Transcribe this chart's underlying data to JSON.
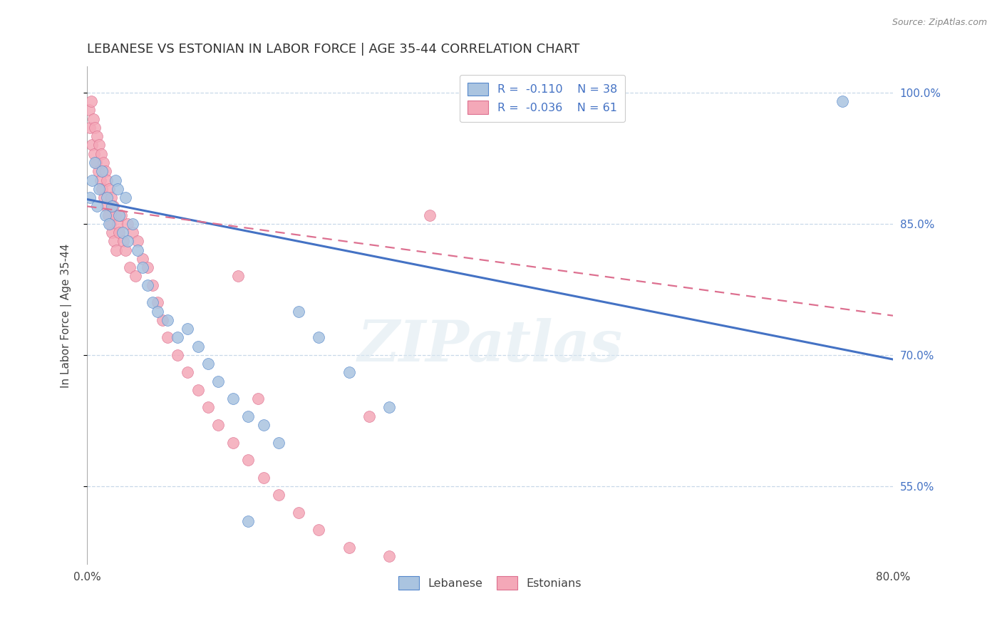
{
  "title": "LEBANESE VS ESTONIAN IN LABOR FORCE | AGE 35-44 CORRELATION CHART",
  "source_text": "Source: ZipAtlas.com",
  "ylabel": "In Labor Force | Age 35-44",
  "xlim": [
    0.0,
    0.8
  ],
  "ylim": [
    0.46,
    1.03
  ],
  "ytick_positions": [
    0.55,
    0.7,
    0.85,
    1.0
  ],
  "yticklabels": [
    "55.0%",
    "70.0%",
    "85.0%",
    "100.0%"
  ],
  "blue_color": "#aac4e0",
  "pink_color": "#f4a8b8",
  "blue_edge_color": "#5588cc",
  "pink_edge_color": "#dd7090",
  "blue_line_color": "#4472c4",
  "pink_line_color": "#dd7090",
  "background_color": "#ffffff",
  "grid_color": "#c8d8e8",
  "watermark": "ZIPatlas",
  "title_fontsize": 13,
  "label_fontsize": 11,
  "tick_fontsize": 11,
  "blue_x": [
    0.003,
    0.005,
    0.008,
    0.01,
    0.012,
    0.015,
    0.018,
    0.02,
    0.022,
    0.025,
    0.028,
    0.03,
    0.032,
    0.035,
    0.038,
    0.04,
    0.045,
    0.05,
    0.055,
    0.06,
    0.065,
    0.07,
    0.08,
    0.09,
    0.1,
    0.11,
    0.12,
    0.13,
    0.145,
    0.16,
    0.175,
    0.19,
    0.21,
    0.23,
    0.26,
    0.3,
    0.16,
    0.75
  ],
  "blue_y": [
    0.88,
    0.9,
    0.92,
    0.87,
    0.89,
    0.91,
    0.86,
    0.88,
    0.85,
    0.87,
    0.9,
    0.89,
    0.86,
    0.84,
    0.88,
    0.83,
    0.85,
    0.82,
    0.8,
    0.78,
    0.76,
    0.75,
    0.74,
    0.72,
    0.73,
    0.71,
    0.69,
    0.67,
    0.65,
    0.63,
    0.62,
    0.6,
    0.75,
    0.72,
    0.68,
    0.64,
    0.51,
    0.99
  ],
  "pink_x": [
    0.002,
    0.003,
    0.004,
    0.005,
    0.006,
    0.007,
    0.008,
    0.009,
    0.01,
    0.011,
    0.012,
    0.013,
    0.014,
    0.015,
    0.016,
    0.017,
    0.018,
    0.019,
    0.02,
    0.021,
    0.022,
    0.023,
    0.024,
    0.025,
    0.026,
    0.027,
    0.028,
    0.029,
    0.03,
    0.032,
    0.034,
    0.036,
    0.038,
    0.04,
    0.042,
    0.045,
    0.048,
    0.05,
    0.055,
    0.06,
    0.065,
    0.07,
    0.075,
    0.08,
    0.09,
    0.1,
    0.11,
    0.12,
    0.13,
    0.145,
    0.16,
    0.175,
    0.19,
    0.21,
    0.23,
    0.26,
    0.3,
    0.34,
    0.15,
    0.17,
    0.28
  ],
  "pink_y": [
    0.98,
    0.96,
    0.99,
    0.94,
    0.97,
    0.93,
    0.96,
    0.92,
    0.95,
    0.91,
    0.94,
    0.9,
    0.93,
    0.89,
    0.92,
    0.88,
    0.91,
    0.87,
    0.9,
    0.86,
    0.89,
    0.85,
    0.88,
    0.84,
    0.87,
    0.83,
    0.86,
    0.82,
    0.85,
    0.84,
    0.86,
    0.83,
    0.82,
    0.85,
    0.8,
    0.84,
    0.79,
    0.83,
    0.81,
    0.8,
    0.78,
    0.76,
    0.74,
    0.72,
    0.7,
    0.68,
    0.66,
    0.64,
    0.62,
    0.6,
    0.58,
    0.56,
    0.54,
    0.52,
    0.5,
    0.48,
    0.47,
    0.86,
    0.79,
    0.65,
    0.63
  ],
  "blue_line_x0": 0.0,
  "blue_line_y0": 0.878,
  "blue_line_x1": 0.8,
  "blue_line_y1": 0.695,
  "pink_line_x0": 0.0,
  "pink_line_y0": 0.87,
  "pink_line_x1": 0.8,
  "pink_line_y1": 0.745
}
